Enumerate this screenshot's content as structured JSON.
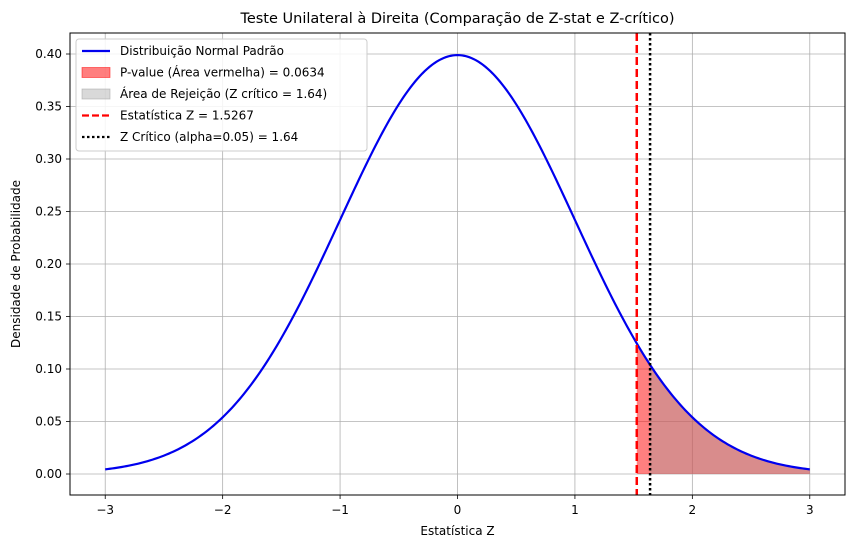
{
  "chart_data": {
    "type": "line",
    "title": "Teste Unilateral à Direita (Comparação de Z-stat e Z-crítico)",
    "xlabel": "Estatística Z",
    "ylabel": "Densidade de Probabilidade",
    "xlim": [
      -3.3,
      3.3
    ],
    "ylim": [
      -0.02,
      0.42
    ],
    "x_ticks": [
      -3,
      -2,
      -1,
      0,
      1,
      2,
      3
    ],
    "x_tick_labels": [
      "−3",
      "−2",
      "−1",
      "0",
      "1",
      "2",
      "3"
    ],
    "y_ticks": [
      0.0,
      0.05,
      0.1,
      0.15,
      0.2,
      0.25,
      0.3,
      0.35,
      0.4
    ],
    "y_tick_labels": [
      "0.00",
      "0.05",
      "0.10",
      "0.15",
      "0.20",
      "0.25",
      "0.30",
      "0.35",
      "0.40"
    ],
    "grid": true,
    "legend_position": "top-left",
    "curve": {
      "name": "Distribuição Normal Padrão",
      "color": "#0000ee",
      "x_range": [
        -3,
        3
      ],
      "mean": 0,
      "std": 1
    },
    "fills": [
      {
        "name": "P-value (Área vermelha) = 0.0634",
        "from": 1.5267,
        "to": 3,
        "color": "#ff0000",
        "opacity": 0.5
      },
      {
        "name": "Área de Rejeição (Z crítico = 1.64)",
        "from": 1.64,
        "to": 3,
        "color": "#a0a0a0",
        "opacity": 0.4
      }
    ],
    "vlines": [
      {
        "name": "Estatística Z = 1.5267",
        "x": 1.5267,
        "color": "#ff0000",
        "style": "dashed"
      },
      {
        "name": "Z Crítico (alpha=0.05) = 1.64",
        "x": 1.64,
        "color": "#000000",
        "style": "dotted"
      }
    ]
  }
}
